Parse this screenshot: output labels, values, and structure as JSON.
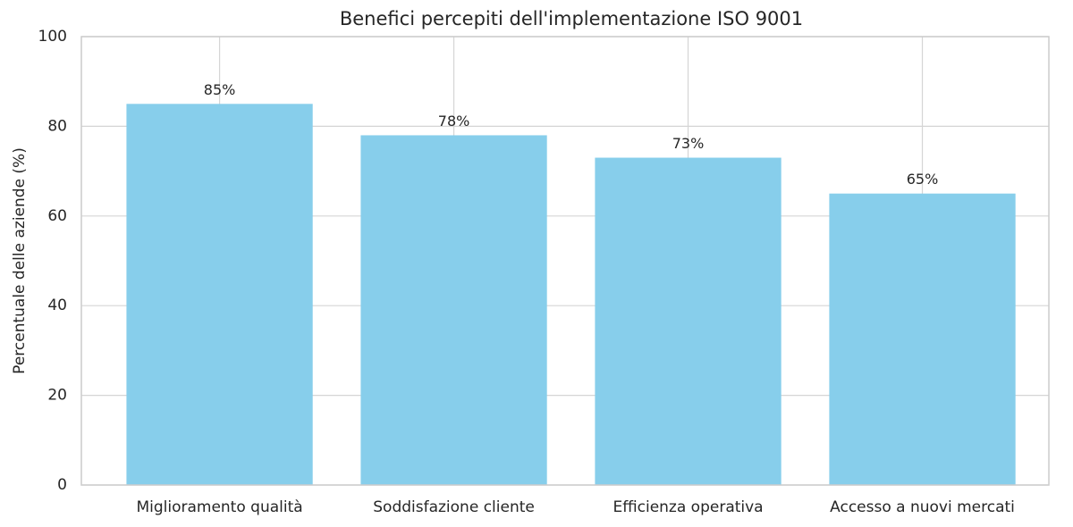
{
  "chart_data": {
    "type": "bar",
    "title": "Benefici percepiti dell'implementazione ISO 9001",
    "y_label": "Percentuale delle aziende (%)",
    "categories": [
      "Miglioramento qualità",
      "Soddisfazione cliente",
      "Efficienza operativa",
      "Accesso a nuovi mercati"
    ],
    "values": [
      85,
      78,
      73,
      65
    ],
    "value_labels": [
      "85%",
      "78%",
      "73%",
      "65%"
    ],
    "color": "#87ceeb",
    "ylim": [
      0,
      100
    ],
    "yticks": [
      0,
      20,
      40,
      60,
      80,
      100
    ],
    "grid": true
  }
}
